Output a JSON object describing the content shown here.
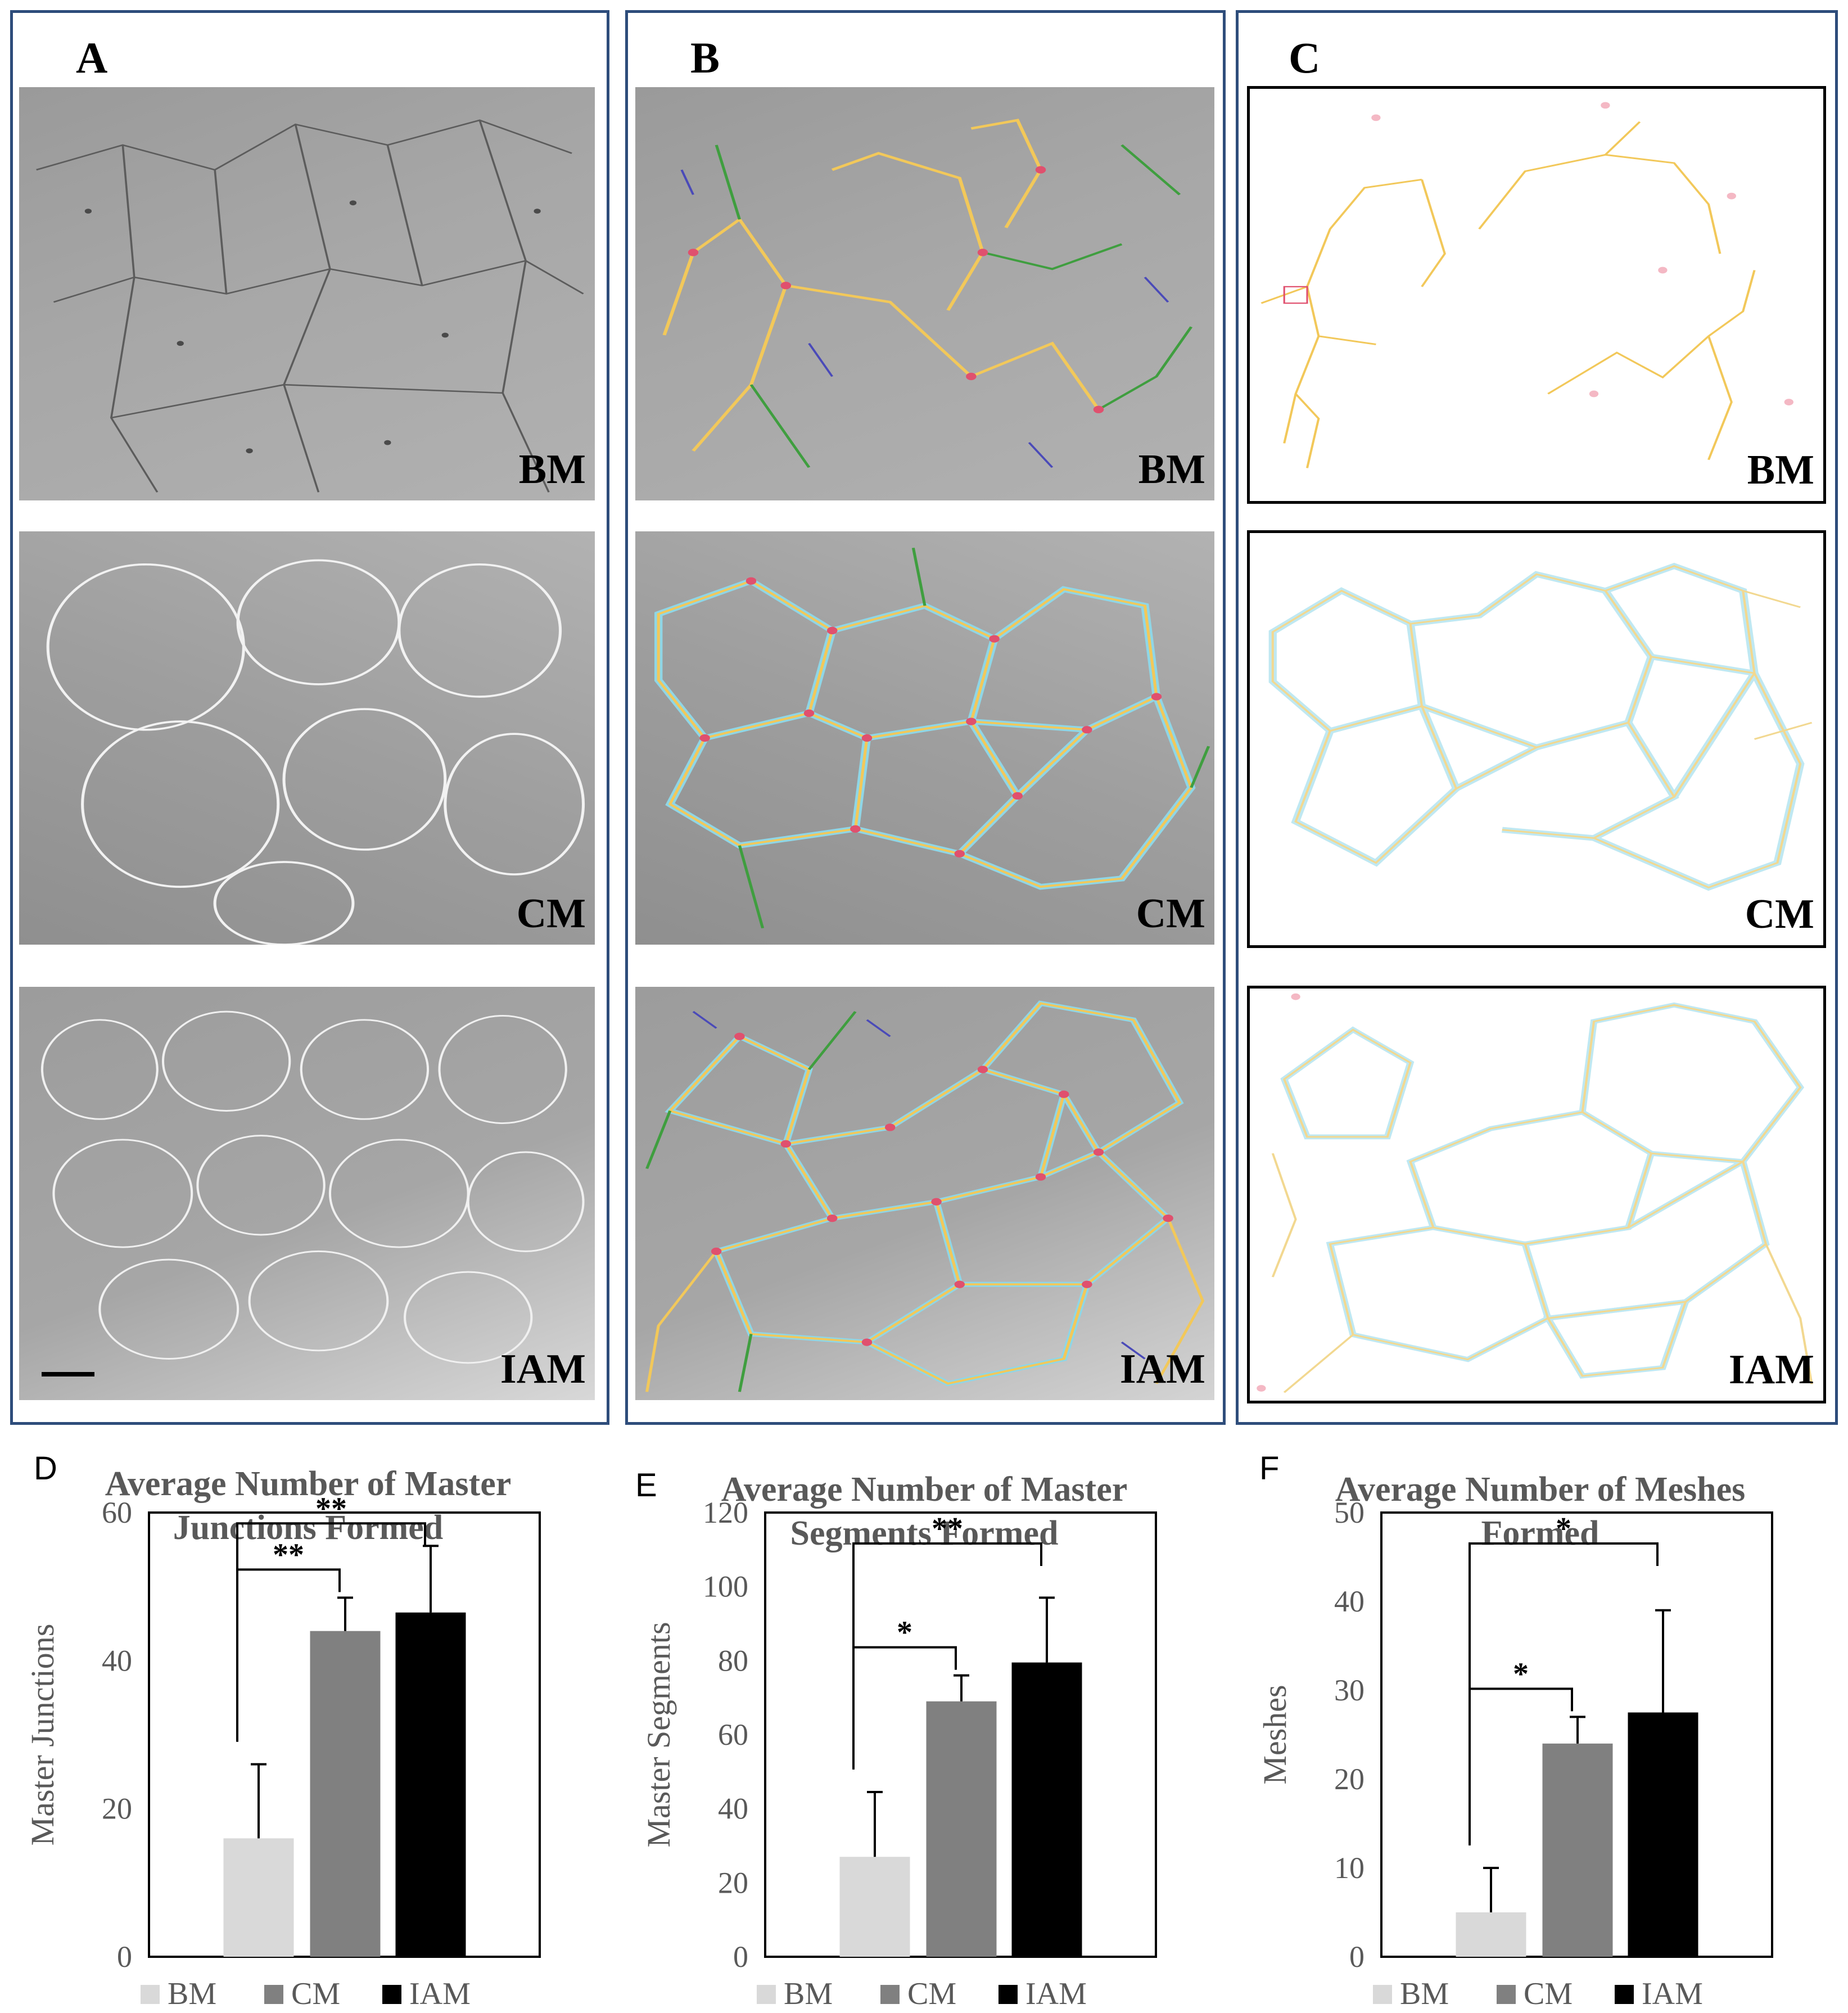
{
  "panels": {
    "A": {
      "letter": "A",
      "rows": [
        "BM",
        "CM",
        "IAM"
      ]
    },
    "B": {
      "letter": "B",
      "rows": [
        "BM",
        "CM",
        "IAM"
      ]
    },
    "C": {
      "letter": "C",
      "rows": [
        "BM",
        "CM",
        "IAM"
      ]
    }
  },
  "colors": {
    "panel_border": "#2e4d7b",
    "bar_bm": "#d9d9d9",
    "bar_cm": "#808080",
    "bar_iam": "#000000",
    "title": "#595959",
    "vessel_yellow": "#f2c85a",
    "vessel_cyan": "#8fd6e6",
    "junction_red": "#e0506e",
    "branch_green": "#3f9e3f",
    "isolated_blue": "#4a4ab8"
  },
  "chart_data": [
    {
      "panel": "D",
      "type": "bar",
      "title_lines": [
        "Average Number of Master",
        "Junctions Formed"
      ],
      "ylabel": "Master Junctions",
      "ylim": [
        0,
        60
      ],
      "yticks": [
        "0",
        "20",
        "40",
        "60"
      ],
      "categories": [
        "BM",
        "CM",
        "IAM"
      ],
      "values": [
        16,
        44,
        46.5
      ],
      "errors": [
        10,
        4.5,
        9
      ],
      "legend": [
        "BM",
        "CM",
        "IAM"
      ],
      "brackets": [
        {
          "from": 0,
          "to": 1,
          "label": "**"
        },
        {
          "from": 0,
          "to": 2,
          "label": "**"
        }
      ]
    },
    {
      "panel": "E",
      "type": "bar",
      "title_lines": [
        "Average Number of Master",
        "Segments Formed"
      ],
      "ylabel": "Master Segments",
      "ylim": [
        0,
        120
      ],
      "yticks": [
        "0",
        "20",
        "40",
        "60",
        "80",
        "100",
        "120"
      ],
      "categories": [
        "BM",
        "CM",
        "IAM"
      ],
      "values": [
        27,
        69,
        79.5
      ],
      "errors": [
        17.5,
        7,
        17.5
      ],
      "legend": [
        "BM",
        "CM",
        "IAM"
      ],
      "brackets": [
        {
          "from": 0,
          "to": 1,
          "label": "*"
        },
        {
          "from": 0,
          "to": 2,
          "label": "**"
        }
      ]
    },
    {
      "panel": "F",
      "type": "bar",
      "title_lines": [
        "Average Number of Meshes",
        "Formed"
      ],
      "ylabel": "Meshes",
      "ylim": [
        0,
        50
      ],
      "yticks": [
        "0",
        "10",
        "20",
        "30",
        "40",
        "50"
      ],
      "categories": [
        "BM",
        "CM",
        "IAM"
      ],
      "values": [
        5,
        24,
        27.5
      ],
      "errors": [
        5,
        3,
        11.5
      ],
      "legend": [
        "BM",
        "CM",
        "IAM"
      ],
      "brackets": [
        {
          "from": 0,
          "to": 1,
          "label": "*"
        },
        {
          "from": 0,
          "to": 2,
          "label": "*"
        }
      ]
    }
  ]
}
